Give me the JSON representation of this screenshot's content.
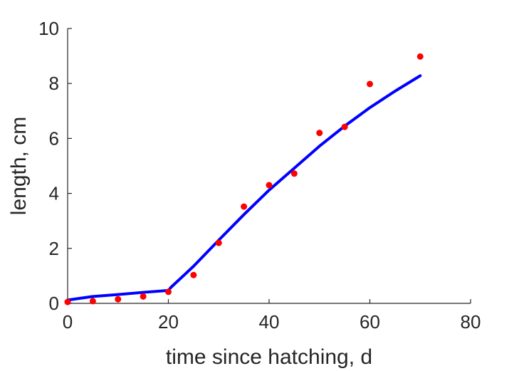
{
  "chart_data": {
    "type": "line",
    "title": "",
    "xlabel": "time since hatching, d",
    "ylabel": "length, cm",
    "xlim": [
      0,
      80
    ],
    "ylim": [
      0,
      10
    ],
    "xticks": [
      0,
      20,
      40,
      60,
      80
    ],
    "yticks": [
      0,
      2,
      4,
      6,
      8,
      10
    ],
    "grid": false,
    "series": [
      {
        "kind": "scatter",
        "color": "#ff0000",
        "x": [
          0,
          5,
          10,
          15,
          20,
          25,
          30,
          35,
          40,
          45,
          50,
          55,
          60,
          70
        ],
        "y": [
          0.05,
          0.08,
          0.15,
          0.25,
          0.42,
          1.03,
          2.2,
          3.52,
          4.3,
          4.72,
          6.2,
          6.42,
          7.98,
          8.98
        ]
      },
      {
        "kind": "line",
        "color": "#0000ff",
        "x": [
          0,
          5,
          10,
          15,
          20,
          20.5,
          25,
          30,
          35,
          40,
          45,
          50,
          55,
          60,
          65,
          70
        ],
        "y": [
          0.12,
          0.25,
          0.32,
          0.4,
          0.47,
          0.58,
          1.35,
          2.3,
          3.23,
          4.12,
          4.92,
          5.72,
          6.45,
          7.12,
          7.72,
          8.28
        ]
      }
    ]
  }
}
